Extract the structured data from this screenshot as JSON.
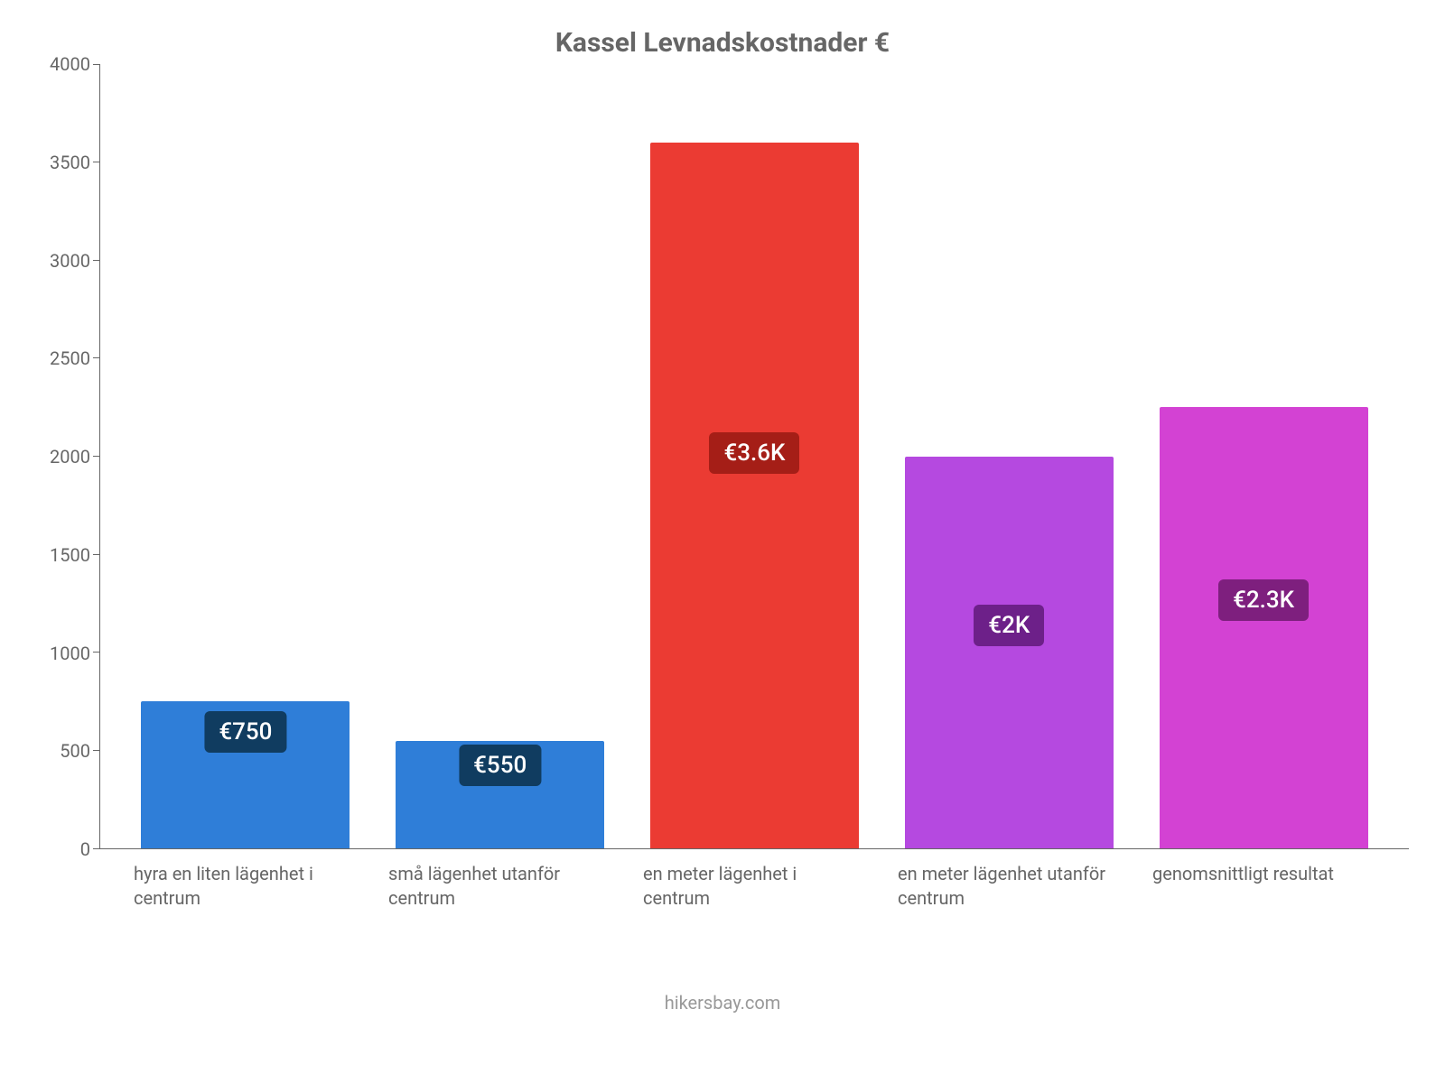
{
  "chart": {
    "type": "bar",
    "title": "Kassel Levnadskostnader €",
    "title_color": "#666666",
    "title_fontsize": 30,
    "background_color": "#ffffff",
    "axis_color": "#666666",
    "tick_label_color": "#666666",
    "tick_fontsize": 20,
    "x_label_fontsize": 20,
    "value_label_fontsize": 26,
    "value_label_text_color": "#ffffff",
    "value_label_border_radius": 6,
    "bar_width_ratio": 0.82,
    "y": {
      "min": 0,
      "max": 4000,
      "step": 500,
      "ticks": [
        0,
        500,
        1000,
        1500,
        2000,
        2500,
        3000,
        3500,
        4000
      ]
    },
    "bars": [
      {
        "category": "hyra en liten lägenhet i centrum",
        "value": 750,
        "display": "€750",
        "bar_color": "#2f7ed8",
        "label_bg": "#103c60",
        "label_y": 600
      },
      {
        "category": "små lägenhet utanför centrum",
        "value": 550,
        "display": "€550",
        "bar_color": "#2f7ed8",
        "label_bg": "#103c60",
        "label_y": 430
      },
      {
        "category": "en meter lägenhet i centrum",
        "value": 3600,
        "display": "€3.6K",
        "bar_color": "#eb3b33",
        "label_bg": "#a51e17",
        "label_y": 2020
      },
      {
        "category": "en meter lägenhet utanför centrum",
        "value": 2000,
        "display": "€2K",
        "bar_color": "#b549e0",
        "label_bg": "#6d2089",
        "label_y": 1140
      },
      {
        "category": "genomsnittligt resultat",
        "value": 2250,
        "display": "€2.3K",
        "bar_color": "#d342d3",
        "label_bg": "#7e1f7e",
        "label_y": 1270
      }
    ],
    "attribution": "hikersbay.com",
    "attribution_color": "#999999",
    "attribution_fontsize": 20
  }
}
